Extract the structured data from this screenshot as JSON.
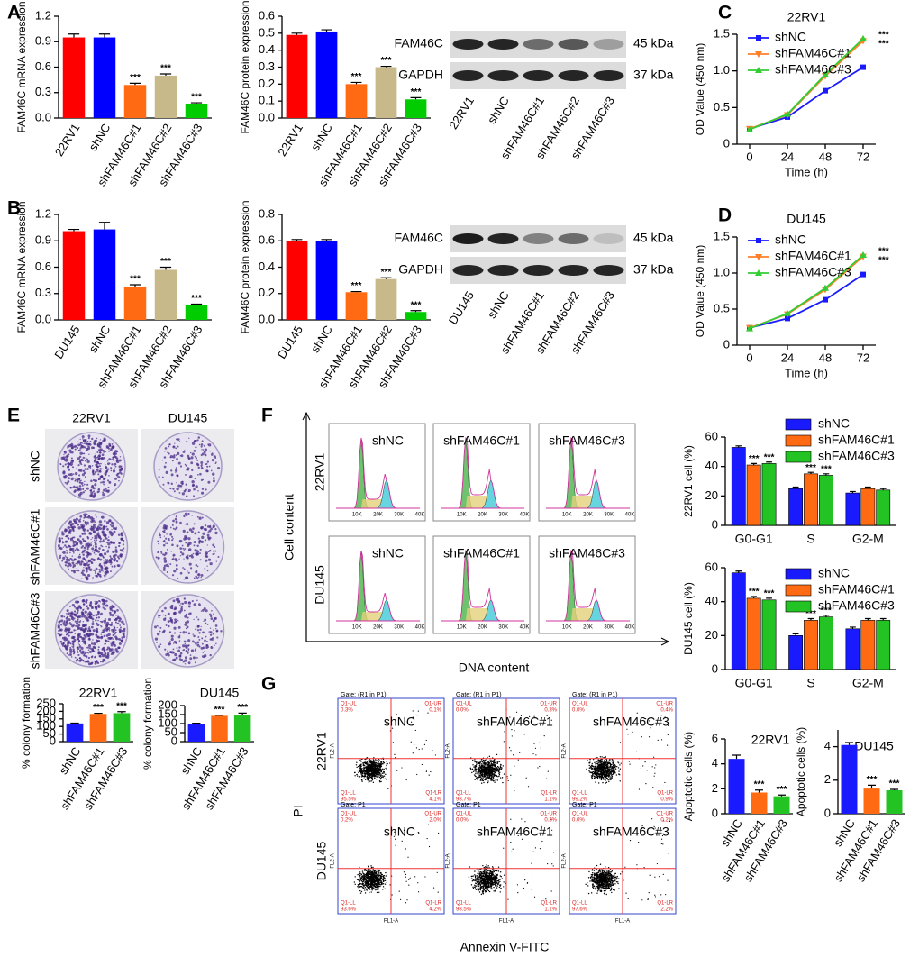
{
  "panels": [
    "A",
    "B",
    "C",
    "D",
    "E",
    "F",
    "G"
  ],
  "chart_data": [
    {
      "type": "bar",
      "ylabel": "FAM46C mRNA expression",
      "categories": [
        "22RV1",
        "shNC",
        "shFAM46C#1",
        "shFAM46C#2",
        "shFAM46C#3"
      ],
      "values": [
        0.95,
        0.95,
        0.39,
        0.5,
        0.17
      ],
      "errors": [
        0.04,
        0.04,
        0.02,
        0.02,
        0.01
      ],
      "colors": [
        "#ff0000",
        "#0000ff",
        "#ff6a13",
        "#c8b98a",
        "#00cc00"
      ],
      "significance": [
        null,
        null,
        "***",
        "***",
        "***"
      ],
      "ylim": [
        0,
        1.2
      ],
      "yticks": [
        {
          "value": 0,
          "label": "0.0"
        },
        0.3,
        0.6,
        0.9,
        1.2
      ]
    },
    {
      "type": "bar",
      "ylabel": "FAM46C protein expression",
      "categories": [
        "22RV1",
        "shNC",
        "shFAM46C#1",
        "shFAM46C#2",
        "shFAM46C#3"
      ],
      "values": [
        0.49,
        0.51,
        0.2,
        0.3,
        0.11
      ],
      "errors": [
        0.01,
        0.01,
        0.01,
        0.005,
        0.01
      ],
      "colors": [
        "#ff0000",
        "#0000ff",
        "#ff6a13",
        "#c8b98a",
        "#00cc00"
      ],
      "significance": [
        null,
        null,
        "***",
        "***",
        "***"
      ],
      "ylim": [
        0,
        0.6
      ],
      "yticks": [
        {
          "value": 0,
          "label": "0.0"
        },
        0.1,
        0.2,
        0.3,
        0.4,
        0.5,
        0.6
      ]
    },
    {
      "type": "line",
      "title": "22RV1",
      "xlabel": "Time (h)",
      "ylabel": "OD Value (450 nm)",
      "x": [
        0,
        24,
        48,
        72
      ],
      "xlim": [
        -8,
        80
      ],
      "xticks": [
        0,
        24,
        48,
        72
      ],
      "ylim": [
        0,
        1.5
      ],
      "yticks": [
        0,
        0.5,
        {
          "value": 1,
          "label": "1.0"
        },
        1.5
      ],
      "series": [
        {
          "name": "shNC",
          "color": "#1a1aff",
          "marker": "square",
          "values": [
            0.21,
            0.37,
            0.73,
            1.05
          ]
        },
        {
          "name": "shFAM46C#1",
          "color": "#ff7f27",
          "marker": "triangle-down",
          "values": [
            0.21,
            0.4,
            0.93,
            1.41
          ]
        },
        {
          "name": "shFAM46C#3",
          "color": "#33cc33",
          "marker": "triangle-up",
          "values": [
            0.2,
            0.41,
            0.95,
            1.44
          ]
        }
      ],
      "annotations": [
        "***",
        "***"
      ]
    },
    {
      "type": "bar",
      "ylabel": "FAM46C mRNA expression",
      "categories": [
        "DU145",
        "shNC",
        "shFAM46C#1",
        "shFAM46C#2",
        "shFAM46C#3"
      ],
      "values": [
        1.01,
        1.03,
        0.38,
        0.57,
        0.17
      ],
      "errors": [
        0.02,
        0.08,
        0.02,
        0.03,
        0.01
      ],
      "colors": [
        "#ff0000",
        "#0000ff",
        "#ff6a13",
        "#c8b98a",
        "#00cc00"
      ],
      "significance": [
        null,
        null,
        "***",
        "***",
        "***"
      ],
      "ylim": [
        0,
        1.2
      ],
      "yticks": [
        {
          "value": 0,
          "label": "0.0"
        },
        0.3,
        0.6,
        0.9,
        1.2
      ]
    },
    {
      "type": "bar",
      "ylabel": "FAM46C protein expression",
      "categories": [
        "DU145",
        "shNC",
        "shFAM46C#1",
        "shFAM46C#2",
        "shFAM46C#3"
      ],
      "values": [
        0.6,
        0.6,
        0.21,
        0.31,
        0.06
      ],
      "errors": [
        0.01,
        0.01,
        0.005,
        0.01,
        0.01
      ],
      "colors": [
        "#ff0000",
        "#0000ff",
        "#ff6a13",
        "#c8b98a",
        "#00cc00"
      ],
      "significance": [
        null,
        null,
        "***",
        "***",
        "***"
      ],
      "ylim": [
        0,
        0.8
      ],
      "yticks": [
        {
          "value": 0,
          "label": "0.0"
        },
        0.2,
        0.4,
        0.6,
        0.8
      ]
    },
    {
      "type": "line",
      "title": "DU145",
      "xlabel": "Time (h)",
      "ylabel": "OD Value (450 nm)",
      "x": [
        0,
        24,
        48,
        72
      ],
      "xlim": [
        -8,
        80
      ],
      "xticks": [
        0,
        24,
        48,
        72
      ],
      "ylim": [
        0,
        1.5
      ],
      "yticks": [
        0,
        0.5,
        {
          "value": 1,
          "label": "1.0"
        },
        1.5
      ],
      "series": [
        {
          "name": "shNC",
          "color": "#1a1aff",
          "marker": "square",
          "values": [
            0.24,
            0.37,
            0.63,
            0.98
          ]
        },
        {
          "name": "shFAM46C#1",
          "color": "#ff7f27",
          "marker": "triangle-down",
          "values": [
            0.24,
            0.43,
            0.77,
            1.23
          ]
        },
        {
          "name": "shFAM46C#3",
          "color": "#33cc33",
          "marker": "triangle-up",
          "values": [
            0.23,
            0.44,
            0.79,
            1.25
          ]
        }
      ],
      "annotations": [
        "***",
        "***"
      ]
    },
    {
      "type": "bar",
      "title": "22RV1",
      "ylabel": "% colony formation",
      "categories": [
        "shNC",
        "shFAM46C#1",
        "shFAM46C#3"
      ],
      "values": [
        120,
        183,
        188
      ],
      "errors": [
        2,
        4,
        10
      ],
      "colors": [
        "#1a1aff",
        "#ff6a13",
        "#22c322"
      ],
      "significance": [
        null,
        "***",
        "***"
      ],
      "ylim": [
        0,
        250
      ],
      "yticks": [
        0,
        50,
        100,
        150,
        200,
        250
      ]
    },
    {
      "type": "bar",
      "title": "DU145",
      "ylabel": "% colony formation",
      "categories": [
        "shNC",
        "shFAM46C#1",
        "shFAM46C#3"
      ],
      "values": [
        100,
        143,
        148
      ],
      "errors": [
        2,
        3,
        10
      ],
      "colors": [
        "#1a1aff",
        "#ff6a13",
        "#22c322"
      ],
      "significance": [
        null,
        "***",
        "***"
      ],
      "ylim": [
        0,
        200
      ],
      "yticks": [
        0,
        50,
        100,
        150,
        200
      ]
    },
    {
      "type": "grouped_bar",
      "ylabel": "22RV1 cell (%)",
      "categories": [
        "G0-G1",
        "S",
        "G2-M"
      ],
      "series": [
        {
          "name": "shNC",
          "color": "#1a1aff",
          "values": [
            53,
            25,
            22
          ],
          "errors": [
            1,
            1,
            1
          ],
          "significance": [
            null,
            null,
            null
          ]
        },
        {
          "name": "shFAM46C#1",
          "color": "#ff6a13",
          "values": [
            41,
            35,
            25
          ],
          "errors": [
            1,
            1,
            1
          ],
          "significance": [
            "***",
            "***",
            null
          ]
        },
        {
          "name": "shFAM46C#3",
          "color": "#22c322",
          "values": [
            42,
            34,
            24
          ],
          "errors": [
            1,
            1,
            1
          ],
          "significance": [
            "***",
            "***",
            null
          ]
        }
      ],
      "ylim": [
        0,
        60
      ],
      "yticks": [
        0,
        20,
        40,
        60
      ],
      "legend": "top-right"
    },
    {
      "type": "grouped_bar",
      "ylabel": "DU145 cell (%)",
      "categories": [
        "G0-G1",
        "S",
        "G2-M"
      ],
      "series": [
        {
          "name": "shNC",
          "color": "#1a1aff",
          "values": [
            57,
            20,
            24
          ],
          "errors": [
            1,
            1,
            1
          ],
          "significance": [
            null,
            null,
            null
          ]
        },
        {
          "name": "shFAM46C#1",
          "color": "#ff6a13",
          "values": [
            42,
            29,
            29
          ],
          "errors": [
            1,
            1,
            1
          ],
          "significance": [
            "***",
            "***",
            null
          ]
        },
        {
          "name": "shFAM46C#3",
          "color": "#22c322",
          "values": [
            41,
            31,
            29
          ],
          "errors": [
            1,
            1,
            1
          ],
          "significance": [
            "***",
            "***",
            null
          ]
        }
      ],
      "ylim": [
        0,
        60
      ],
      "yticks": [
        0,
        20,
        40,
        60
      ],
      "legend": "top-right"
    },
    {
      "type": "bar",
      "title": "22RV1",
      "ylabel": "Apoptotic cells (%)",
      "categories": [
        "shNC",
        "shFAM46C#1",
        "shFAM46C#3"
      ],
      "values": [
        4.4,
        1.7,
        1.4
      ],
      "errors": [
        0.3,
        0.2,
        0.1
      ],
      "colors": [
        "#1a1aff",
        "#ff6a13",
        "#22c322"
      ],
      "significance": [
        null,
        "***",
        "***"
      ],
      "ylim": [
        0,
        6
      ],
      "yticks": [
        0,
        2,
        4,
        6
      ]
    },
    {
      "type": "bar",
      "title": "DU145",
      "ylabel": "Apoptotic cells (%)",
      "categories": [
        "shNC",
        "shFAM46C#1",
        "shFAM46C#3"
      ],
      "values": [
        4.1,
        1.5,
        1.4
      ],
      "errors": [
        0.15,
        0.2,
        0.05
      ],
      "colors": [
        "#1a1aff",
        "#ff6a13",
        "#22c322"
      ],
      "significance": [
        null,
        "***",
        "***"
      ],
      "ylim": [
        0,
        5
      ],
      "yticks": [
        0,
        2,
        4
      ]
    }
  ],
  "blots": [
    {
      "proteins": [
        "FAM46C",
        "GAPDH"
      ],
      "sizes": [
        "45 kDa",
        "37 kDa"
      ],
      "lanes": [
        "22RV1",
        "shNC",
        "shFAM46C#1",
        "shFAM46C#2",
        "shFAM46C#3"
      ]
    },
    {
      "proteins": [
        "FAM46C",
        "GAPDH"
      ],
      "sizes": [
        "45 kDa",
        "37 kDa"
      ],
      "lanes": [
        "DU145",
        "shNC",
        "shFAM46C#1",
        "shFAM46C#2",
        "shFAM46C#3"
      ]
    }
  ],
  "colony": {
    "columns": [
      "22RV1",
      "DU145"
    ],
    "rows": [
      "shNC",
      "shFAM46C#1",
      "shFAM46C#3"
    ]
  },
  "cell_cycle": {
    "rows": [
      "22RV1",
      "DU145"
    ],
    "columns": [
      "shNC",
      "shFAM46C#1",
      "shFAM46C#3"
    ],
    "xlabel": "DNA content",
    "ylabel": "Cell content",
    "xticks": [
      "10K",
      "20K",
      "30K",
      "40K"
    ]
  },
  "apoptosis": {
    "rows": [
      "22RV1",
      "DU145"
    ],
    "columns": [
      "shNC",
      "shFAM46C#1",
      "shFAM46C#3"
    ],
    "xlabel": "Annexin V-FITC",
    "ylabel": "PI",
    "gates": [
      "Gate: (R1 in P1)",
      "Gate: P1"
    ],
    "x_channel": "FL1-A",
    "y_channel": "FL2-A",
    "quadrant_names": [
      "Q1-UL",
      "Q1-UR",
      "Q1-LL",
      "Q1-LR"
    ],
    "quadrants": [
      [
        [
          "0.3%",
          "0.1%",
          "95.5%",
          "4.1%"
        ],
        [
          "0.0%",
          "0.3%",
          "98.7%",
          "1.1%"
        ],
        [
          "0.0%",
          "0.4%",
          "99.2%",
          "0.9%"
        ]
      ],
      [
        [
          "0.2%",
          "2.0%",
          "93.6%",
          "4.2%"
        ],
        [
          "0.0%",
          "0.3%",
          "98.5%",
          "1.1%"
        ],
        [
          "0.0%",
          "0.2%",
          "97.6%",
          "2.2%"
        ]
      ]
    ]
  }
}
